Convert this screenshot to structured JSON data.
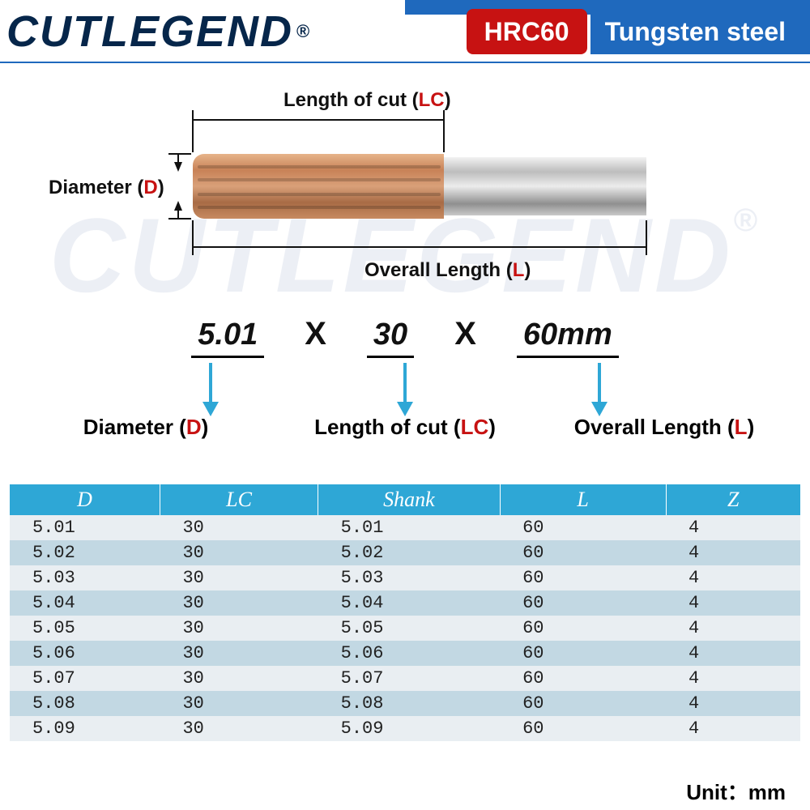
{
  "brand": {
    "name": "CUTLEGEND",
    "reg": "®"
  },
  "header": {
    "hardness": "HRC60",
    "material": "Tungsten steel",
    "line_color": "#1f69bd",
    "hrc_bg": "#c71212",
    "mat_bg": "#1f69bd"
  },
  "watermark": {
    "text": "CUTLEGEND",
    "reg": "®",
    "color": "rgba(200,210,225,0.35)"
  },
  "diagram": {
    "lc_label_pre": "Length of cut (",
    "lc_code": "LC",
    "d_label_pre": "Diameter (",
    "d_code": "D",
    "l_label_pre": "Overall Length (",
    "l_code": "L",
    "close": ")",
    "tool_colors": {
      "cut_gradient": [
        "#e7b48a",
        "#c88257",
        "#d9a079",
        "#a86b45",
        "#c78a60"
      ],
      "shank_gradient": [
        "#f2f2f2",
        "#bdbdbd",
        "#ececec",
        "#8f8f8f",
        "#c9c9c9"
      ]
    },
    "dim_line_color": "#111111"
  },
  "spec": {
    "d": "5.01",
    "lc": "30",
    "l": "60mm",
    "sep": "X",
    "arrow_color": "#2ea7d6",
    "labels": {
      "d_pre": "Diameter (",
      "d_code": "D",
      "lc_pre": "Length of cut (",
      "lc_code": "LC",
      "l_pre": "Overall Length (",
      "l_code": "L",
      "close": ")"
    }
  },
  "table": {
    "header_bg": "#2ea7d6",
    "header_fg": "#ffffff",
    "row_odd_bg": "#e9eef2",
    "row_even_bg": "#c2d8e3",
    "columns": [
      "D",
      "LC",
      "Shank",
      "L",
      "Z"
    ],
    "col_widths_pct": [
      19,
      20,
      23,
      21,
      17
    ],
    "rows": [
      [
        "5.01",
        "30",
        "5.01",
        "60",
        "4"
      ],
      [
        "5.02",
        "30",
        "5.02",
        "60",
        "4"
      ],
      [
        "5.03",
        "30",
        "5.03",
        "60",
        "4"
      ],
      [
        "5.04",
        "30",
        "5.04",
        "60",
        "4"
      ],
      [
        "5.05",
        "30",
        "5.05",
        "60",
        "4"
      ],
      [
        "5.06",
        "30",
        "5.06",
        "60",
        "4"
      ],
      [
        "5.07",
        "30",
        "5.07",
        "60",
        "4"
      ],
      [
        "5.08",
        "30",
        "5.08",
        "60",
        "4"
      ],
      [
        "5.09",
        "30",
        "5.09",
        "60",
        "4"
      ]
    ]
  },
  "unit": {
    "label": "Unit：",
    "value": "mm"
  }
}
